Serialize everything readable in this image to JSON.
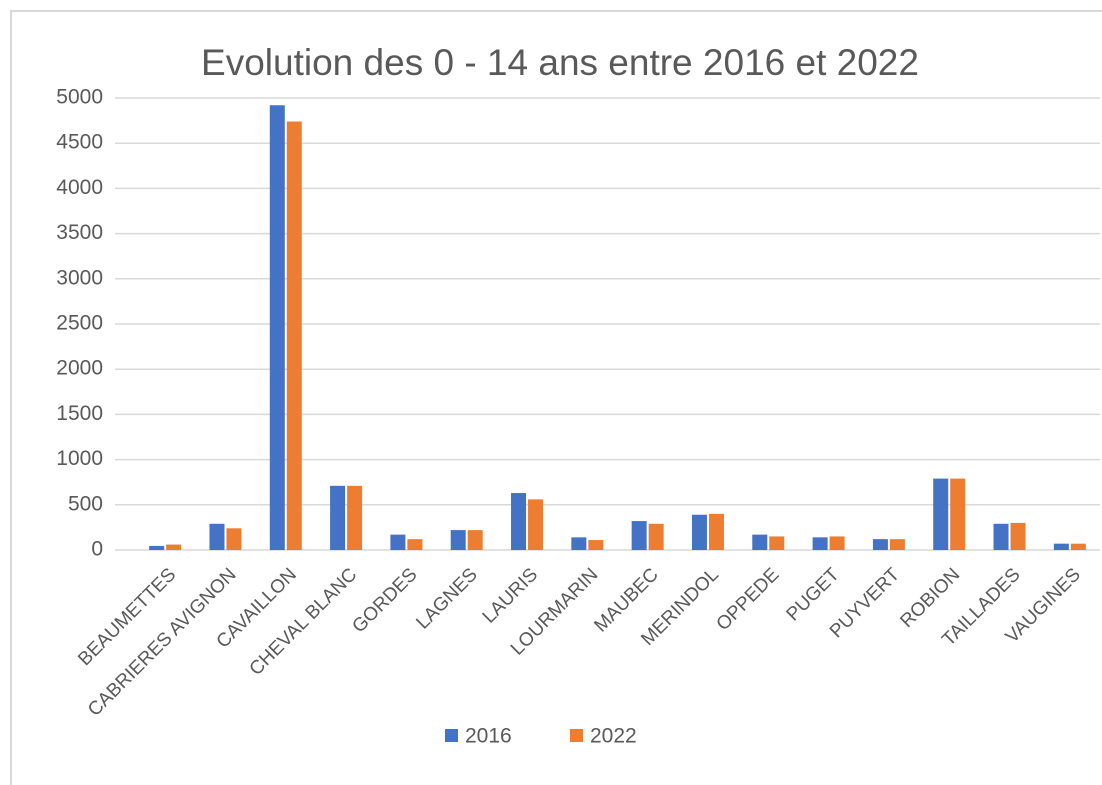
{
  "chart_data": {
    "type": "bar",
    "title": "Evolution des 0 - 14 ans entre 2016 et 2022",
    "categories": [
      "BEAUMETTES",
      "CABRIERES AVIGNON",
      "CAVAILLON",
      "CHEVAL BLANC",
      "GORDES",
      "LAGNES",
      "LAURIS",
      "LOURMARIN",
      "MAUBEC",
      "MERINDOL",
      "OPPEDE",
      "PUGET",
      "PUYVERT",
      "ROBION",
      "TAILLADES",
      "VAUGINES"
    ],
    "series": [
      {
        "name": "2016",
        "color": "#4472c4",
        "values": [
          45,
          290,
          4920,
          710,
          170,
          220,
          630,
          140,
          320,
          390,
          170,
          140,
          120,
          790,
          290,
          70
        ]
      },
      {
        "name": "2022",
        "color": "#ed7d31",
        "values": [
          60,
          240,
          4740,
          710,
          120,
          220,
          560,
          110,
          290,
          400,
          150,
          150,
          120,
          790,
          300,
          70
        ]
      }
    ],
    "ylim": [
      0,
      5000
    ],
    "yticks": [
      0,
      500,
      1000,
      1500,
      2000,
      2500,
      3000,
      3500,
      4000,
      4500,
      5000
    ],
    "grid": true,
    "legend": "bottom"
  }
}
